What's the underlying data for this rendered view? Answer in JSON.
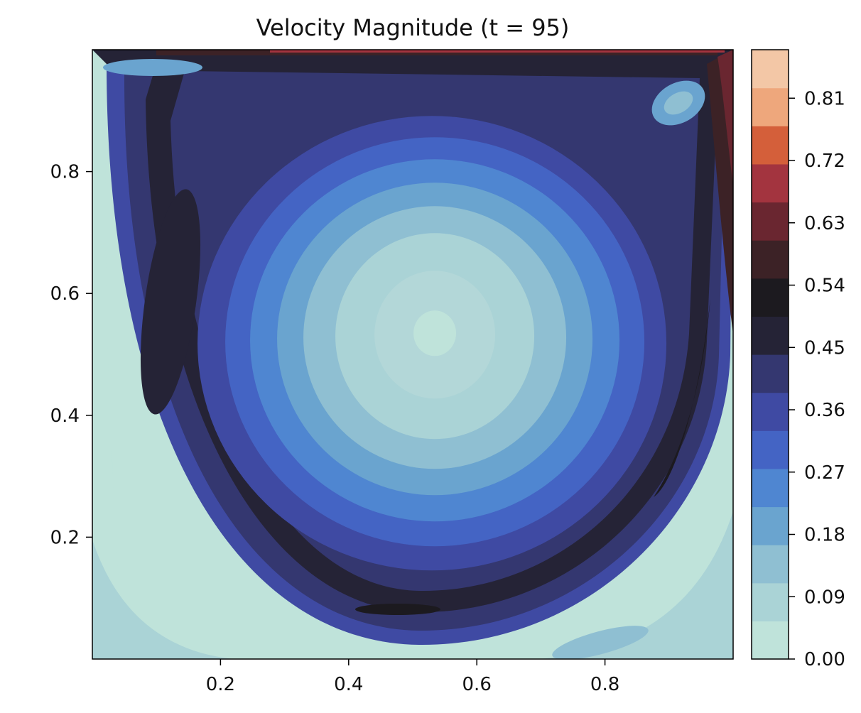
{
  "chart_data": {
    "type": "contourf",
    "title": "Velocity Magnitude (t = 95)",
    "xlabel": "",
    "ylabel": "",
    "xlim": [
      0.0,
      1.0
    ],
    "ylim": [
      0.0,
      1.0
    ],
    "x_ticks": [
      0.2,
      0.4,
      0.6,
      0.8
    ],
    "x_tick_labels": [
      "0.2",
      "0.4",
      "0.6",
      "0.8"
    ],
    "y_ticks": [
      0.2,
      0.4,
      0.6,
      0.8
    ],
    "y_tick_labels": [
      "0.2",
      "0.4",
      "0.6",
      "0.8"
    ],
    "grid": false,
    "colorbar": {
      "range": [
        0.0,
        0.88
      ],
      "ticks": [
        0.0,
        0.09,
        0.18,
        0.27,
        0.36,
        0.45,
        0.54,
        0.63,
        0.72,
        0.81
      ],
      "tick_labels": [
        "0.00",
        "0.09",
        "0.18",
        "0.27",
        "0.36",
        "0.45",
        "0.54",
        "0.63",
        "0.72",
        "0.81"
      ],
      "colormap": "icefire-like",
      "colors": [
        "#bfe3da",
        "#aad3d6",
        "#8fbfd2",
        "#6aa4cf",
        "#4f86d1",
        "#4464c4",
        "#3f4aa3",
        "#343770",
        "#252336",
        "#1c1a1f",
        "#3c2226",
        "#6a2630",
        "#a3343f",
        "#d45f3a",
        "#eea77c",
        "#f3c7a6"
      ]
    },
    "field_features": {
      "vortex_center": [
        0.53,
        0.53
      ],
      "vortex_center_value": 0.0,
      "lid_velocity_max": 0.88,
      "description_values_at_walls": 0.0
    }
  }
}
